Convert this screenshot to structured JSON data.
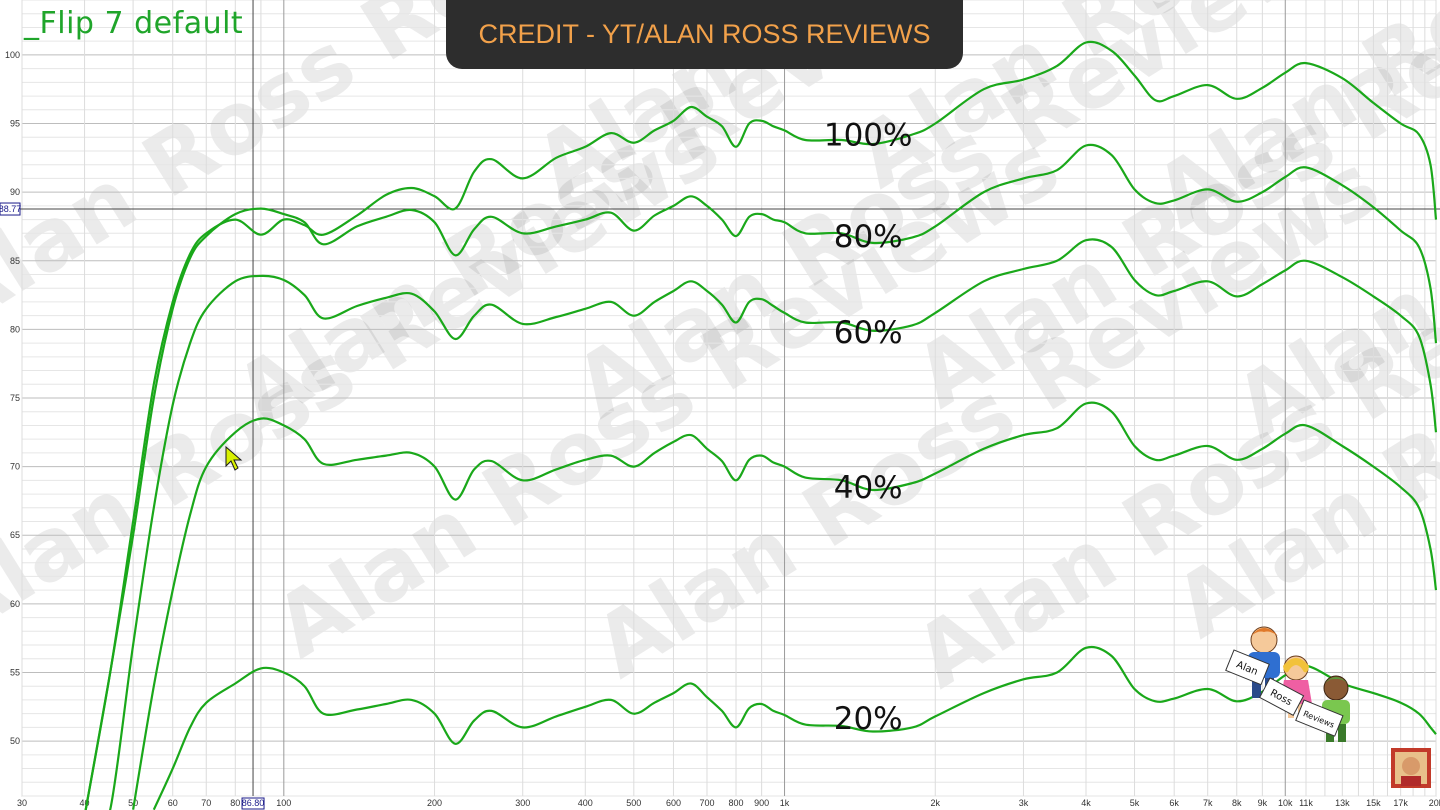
{
  "title": "_Flip 7 default",
  "banner": "CREDIT - YT/ALAN ROSS REVIEWS",
  "watermark": "Alan Ross Reviews",
  "cursor_readout": {
    "y": "88.77",
    "x": "86.80"
  },
  "logo_text": [
    "Alan",
    "Ross",
    "Reviews"
  ],
  "chart_data": {
    "type": "line",
    "x_scale": "log",
    "xlim": [
      30,
      20000
    ],
    "ylim": [
      46,
      104
    ],
    "grid": true,
    "y_ticks": [
      50,
      55,
      60,
      65,
      70,
      75,
      80,
      85,
      90,
      95,
      100
    ],
    "x_ticks": [
      {
        "v": 30,
        "l": "30"
      },
      {
        "v": 40,
        "l": "40"
      },
      {
        "v": 50,
        "l": "50"
      },
      {
        "v": 60,
        "l": "60"
      },
      {
        "v": 70,
        "l": "70"
      },
      {
        "v": 80,
        "l": "80"
      },
      {
        "v": 100,
        "l": "100"
      },
      {
        "v": 200,
        "l": "200"
      },
      {
        "v": 300,
        "l": "300"
      },
      {
        "v": 400,
        "l": "400"
      },
      {
        "v": 500,
        "l": "500"
      },
      {
        "v": 600,
        "l": "600"
      },
      {
        "v": 700,
        "l": "700"
      },
      {
        "v": 800,
        "l": "800"
      },
      {
        "v": 900,
        "l": "900"
      },
      {
        "v": 1000,
        "l": "1k"
      },
      {
        "v": 2000,
        "l": "2k"
      },
      {
        "v": 3000,
        "l": "3k"
      },
      {
        "v": 4000,
        "l": "4k"
      },
      {
        "v": 5000,
        "l": "5k"
      },
      {
        "v": 6000,
        "l": "6k"
      },
      {
        "v": 7000,
        "l": "7k"
      },
      {
        "v": 8000,
        "l": "8k"
      },
      {
        "v": 9000,
        "l": "9k"
      },
      {
        "v": 10000,
        "l": "10k"
      },
      {
        "v": 11000,
        "l": "11k"
      },
      {
        "v": 13000,
        "l": "13k"
      },
      {
        "v": 15000,
        "l": "15k"
      },
      {
        "v": 17000,
        "l": "17k"
      },
      {
        "v": 20000,
        "l": "20k"
      }
    ],
    "crosshair": {
      "x": 86.8,
      "y": 88.77
    },
    "line_color": "#1aa81a",
    "series": [
      {
        "name": "100%",
        "label_at": [
          1200,
          94.2
        ],
        "points": [
          [
            40,
            42
          ],
          [
            45,
            55
          ],
          [
            50,
            66
          ],
          [
            55,
            76
          ],
          [
            60,
            82
          ],
          [
            65,
            85.5
          ],
          [
            70,
            87
          ],
          [
            80,
            88
          ],
          [
            90,
            86.9
          ],
          [
            100,
            88
          ],
          [
            110,
            87.6
          ],
          [
            120,
            86.9
          ],
          [
            140,
            88.3
          ],
          [
            160,
            89.8
          ],
          [
            180,
            90.3
          ],
          [
            200,
            89.7
          ],
          [
            220,
            88.8
          ],
          [
            240,
            91.5
          ],
          [
            260,
            92.4
          ],
          [
            300,
            91
          ],
          [
            350,
            92.5
          ],
          [
            400,
            93.3
          ],
          [
            450,
            94.3
          ],
          [
            500,
            93.6
          ],
          [
            550,
            94.5
          ],
          [
            600,
            95.2
          ],
          [
            650,
            96.2
          ],
          [
            700,
            95.5
          ],
          [
            750,
            94.8
          ],
          [
            800,
            93.3
          ],
          [
            850,
            95
          ],
          [
            900,
            95.2
          ],
          [
            950,
            94.8
          ],
          [
            1000,
            94.5
          ],
          [
            1100,
            93.8
          ],
          [
            1300,
            93.8
          ],
          [
            1500,
            93.5
          ],
          [
            1800,
            94.2
          ],
          [
            2000,
            95
          ],
          [
            2500,
            97.5
          ],
          [
            3000,
            98.2
          ],
          [
            3500,
            99.2
          ],
          [
            4000,
            100.9
          ],
          [
            4500,
            100.3
          ],
          [
            5000,
            98.5
          ],
          [
            5500,
            96.7
          ],
          [
            6000,
            97
          ],
          [
            7000,
            97.8
          ],
          [
            8000,
            96.8
          ],
          [
            9000,
            97.6
          ],
          [
            10000,
            98.7
          ],
          [
            11000,
            99.4
          ],
          [
            13000,
            98.3
          ],
          [
            15000,
            96.5
          ],
          [
            17000,
            95
          ],
          [
            18500,
            94.2
          ],
          [
            19500,
            92
          ],
          [
            20000,
            88
          ]
        ]
      },
      {
        "name": "80%",
        "label_at": [
          1200,
          86.8
        ],
        "points": [
          [
            40,
            42
          ],
          [
            45,
            55
          ],
          [
            50,
            65
          ],
          [
            55,
            75
          ],
          [
            60,
            81.5
          ],
          [
            65,
            85.2
          ],
          [
            70,
            86.8
          ],
          [
            80,
            88.4
          ],
          [
            90,
            88.8
          ],
          [
            100,
            88.4
          ],
          [
            110,
            87.8
          ],
          [
            120,
            86.2
          ],
          [
            140,
            87.5
          ],
          [
            160,
            88.2
          ],
          [
            180,
            88.7
          ],
          [
            200,
            87.8
          ],
          [
            220,
            85.4
          ],
          [
            240,
            87.3
          ],
          [
            260,
            88.2
          ],
          [
            300,
            87
          ],
          [
            350,
            87.5
          ],
          [
            400,
            88
          ],
          [
            450,
            88.5
          ],
          [
            500,
            87.2
          ],
          [
            550,
            88.3
          ],
          [
            600,
            89
          ],
          [
            650,
            89.7
          ],
          [
            700,
            89
          ],
          [
            750,
            88
          ],
          [
            800,
            86.8
          ],
          [
            850,
            88.2
          ],
          [
            900,
            88.4
          ],
          [
            950,
            88
          ],
          [
            1000,
            87.8
          ],
          [
            1100,
            87
          ],
          [
            1300,
            87
          ],
          [
            1500,
            86.3
          ],
          [
            1800,
            86.7
          ],
          [
            2000,
            87.5
          ],
          [
            2500,
            90
          ],
          [
            3000,
            91
          ],
          [
            3500,
            91.6
          ],
          [
            4000,
            93.4
          ],
          [
            4500,
            92.7
          ],
          [
            5000,
            90.2
          ],
          [
            5500,
            89.2
          ],
          [
            6000,
            89.4
          ],
          [
            7000,
            90.2
          ],
          [
            8000,
            89.3
          ],
          [
            9000,
            90
          ],
          [
            10000,
            91.1
          ],
          [
            11000,
            91.8
          ],
          [
            13000,
            90.5
          ],
          [
            15000,
            88.9
          ],
          [
            17000,
            87.2
          ],
          [
            18500,
            86
          ],
          [
            19500,
            83
          ],
          [
            20000,
            79
          ]
        ]
      },
      {
        "name": "60%",
        "label_at": [
          1200,
          79.8
        ],
        "points": [
          [
            42,
            36
          ],
          [
            45,
            45
          ],
          [
            50,
            57
          ],
          [
            55,
            67
          ],
          [
            60,
            74.5
          ],
          [
            65,
            79
          ],
          [
            70,
            81.5
          ],
          [
            80,
            83.5
          ],
          [
            90,
            83.9
          ],
          [
            100,
            83.6
          ],
          [
            110,
            82.5
          ],
          [
            120,
            80.8
          ],
          [
            140,
            81.7
          ],
          [
            160,
            82.3
          ],
          [
            180,
            82.6
          ],
          [
            200,
            81.3
          ],
          [
            220,
            79.3
          ],
          [
            240,
            81
          ],
          [
            260,
            81.8
          ],
          [
            300,
            80.4
          ],
          [
            350,
            80.9
          ],
          [
            400,
            81.5
          ],
          [
            450,
            82
          ],
          [
            500,
            81
          ],
          [
            550,
            82
          ],
          [
            600,
            82.8
          ],
          [
            650,
            83.5
          ],
          [
            700,
            82.8
          ],
          [
            750,
            81.8
          ],
          [
            800,
            80.5
          ],
          [
            850,
            82
          ],
          [
            900,
            82.2
          ],
          [
            950,
            81.7
          ],
          [
            1000,
            81.2
          ],
          [
            1100,
            80.5
          ],
          [
            1300,
            80.5
          ],
          [
            1500,
            79.9
          ],
          [
            1800,
            80.3
          ],
          [
            2000,
            81.2
          ],
          [
            2500,
            83.5
          ],
          [
            3000,
            84.4
          ],
          [
            3500,
            85
          ],
          [
            4000,
            86.5
          ],
          [
            4500,
            86
          ],
          [
            5000,
            83.6
          ],
          [
            5500,
            82.5
          ],
          [
            6000,
            82.8
          ],
          [
            7000,
            83.5
          ],
          [
            8000,
            82.4
          ],
          [
            9000,
            83.3
          ],
          [
            10000,
            84.3
          ],
          [
            11000,
            85
          ],
          [
            13000,
            83.8
          ],
          [
            15000,
            82.4
          ],
          [
            17000,
            81
          ],
          [
            18500,
            79.5
          ],
          [
            19500,
            76
          ],
          [
            20000,
            72.5
          ]
        ]
      },
      {
        "name": "40%",
        "label_at": [
          1200,
          68.5
        ],
        "points": [
          [
            50,
            45
          ],
          [
            55,
            54
          ],
          [
            60,
            61
          ],
          [
            65,
            66.5
          ],
          [
            70,
            70
          ],
          [
            80,
            72.5
          ],
          [
            90,
            73.5
          ],
          [
            100,
            73
          ],
          [
            110,
            72
          ],
          [
            120,
            70.2
          ],
          [
            140,
            70.5
          ],
          [
            160,
            70.8
          ],
          [
            180,
            71
          ],
          [
            200,
            70
          ],
          [
            220,
            67.6
          ],
          [
            240,
            69.8
          ],
          [
            260,
            70.4
          ],
          [
            300,
            69
          ],
          [
            350,
            69.8
          ],
          [
            400,
            70.5
          ],
          [
            450,
            70.8
          ],
          [
            500,
            70
          ],
          [
            550,
            71
          ],
          [
            600,
            71.8
          ],
          [
            650,
            72.3
          ],
          [
            700,
            71.3
          ],
          [
            750,
            70.4
          ],
          [
            800,
            69
          ],
          [
            850,
            70.5
          ],
          [
            900,
            70.8
          ],
          [
            950,
            70.3
          ],
          [
            1000,
            70
          ],
          [
            1100,
            69.2
          ],
          [
            1300,
            69
          ],
          [
            1500,
            68.3
          ],
          [
            1800,
            68.8
          ],
          [
            2000,
            69.5
          ],
          [
            2500,
            71.3
          ],
          [
            3000,
            72.3
          ],
          [
            3500,
            72.8
          ],
          [
            4000,
            74.6
          ],
          [
            4500,
            74
          ],
          [
            5000,
            71.5
          ],
          [
            5500,
            70.5
          ],
          [
            6000,
            70.8
          ],
          [
            7000,
            71.5
          ],
          [
            8000,
            70.5
          ],
          [
            9000,
            71.3
          ],
          [
            10000,
            72.4
          ],
          [
            11000,
            73
          ],
          [
            13000,
            71.5
          ],
          [
            15000,
            70
          ],
          [
            17000,
            68.5
          ],
          [
            18500,
            67
          ],
          [
            19500,
            64
          ],
          [
            20000,
            61
          ]
        ]
      },
      {
        "name": "20%",
        "label_at": [
          1200,
          51.7
        ],
        "points": [
          [
            55,
            45
          ],
          [
            60,
            48
          ],
          [
            65,
            51
          ],
          [
            70,
            52.8
          ],
          [
            80,
            54.2
          ],
          [
            90,
            55.3
          ],
          [
            100,
            55
          ],
          [
            110,
            54
          ],
          [
            120,
            52
          ],
          [
            140,
            52.3
          ],
          [
            160,
            52.7
          ],
          [
            180,
            53
          ],
          [
            200,
            52
          ],
          [
            220,
            49.8
          ],
          [
            240,
            51.5
          ],
          [
            260,
            52.2
          ],
          [
            300,
            51
          ],
          [
            350,
            51.8
          ],
          [
            400,
            52.5
          ],
          [
            450,
            53
          ],
          [
            500,
            52
          ],
          [
            550,
            52.8
          ],
          [
            600,
            53.5
          ],
          [
            650,
            54.2
          ],
          [
            700,
            53.2
          ],
          [
            750,
            52.2
          ],
          [
            800,
            51
          ],
          [
            850,
            52.4
          ],
          [
            900,
            52.7
          ],
          [
            950,
            52.2
          ],
          [
            1000,
            51.9
          ],
          [
            1100,
            51.2
          ],
          [
            1300,
            51.1
          ],
          [
            1500,
            50.7
          ],
          [
            1800,
            51
          ],
          [
            2000,
            51.8
          ],
          [
            2500,
            53.5
          ],
          [
            3000,
            54.5
          ],
          [
            3500,
            55
          ],
          [
            4000,
            56.8
          ],
          [
            4500,
            56.2
          ],
          [
            5000,
            53.8
          ],
          [
            5500,
            52.9
          ],
          [
            6000,
            53.1
          ],
          [
            7000,
            53.8
          ],
          [
            8000,
            52.9
          ],
          [
            9000,
            53.6
          ],
          [
            10000,
            54.8
          ],
          [
            11000,
            55.5
          ],
          [
            13000,
            54.2
          ],
          [
            15000,
            53.5
          ],
          [
            17000,
            52.8
          ],
          [
            18500,
            52
          ],
          [
            19500,
            51
          ],
          [
            20000,
            50.5
          ]
        ]
      }
    ]
  }
}
